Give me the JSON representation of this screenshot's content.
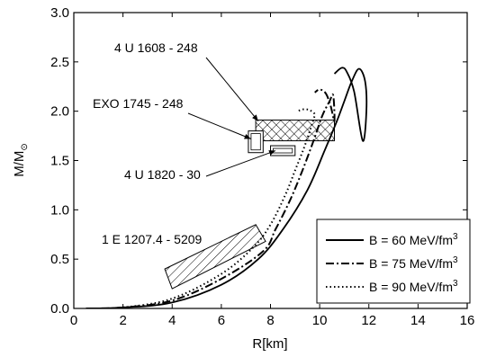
{
  "chart_data": {
    "type": "line",
    "xlabel": "R[km]",
    "ylabel": "M/M",
    "ylabel_sub": "⊙",
    "xlim": [
      0,
      16
    ],
    "ylim": [
      0.0,
      3.0
    ],
    "x_ticks": [
      0,
      2,
      4,
      6,
      8,
      10,
      12,
      14,
      16
    ],
    "y_ticks": [
      0.0,
      0.5,
      1.0,
      1.5,
      2.0,
      2.5,
      3.0
    ],
    "x_tick_labels": [
      "0",
      "2",
      "4",
      "6",
      "8",
      "10",
      "12",
      "14",
      "16"
    ],
    "y_tick_labels": [
      "0.0",
      "0.5",
      "1.0",
      "1.5",
      "2.0",
      "2.5",
      "3.0"
    ],
    "legend_position": "bottom-right",
    "series": [
      {
        "name": "B = 60 MeV/fm",
        "name_sup": "3",
        "style": "solid",
        "x": [
          0.5,
          2.0,
          4.0,
          6.0,
          7.5,
          8.5,
          9.5,
          10.2,
          10.7,
          11.0,
          11.3,
          11.6,
          11.85,
          11.9,
          11.75,
          11.4,
          11.1,
          10.9,
          10.6
        ],
        "y": [
          0.0,
          0.01,
          0.06,
          0.24,
          0.5,
          0.8,
          1.2,
          1.6,
          1.9,
          2.1,
          2.3,
          2.43,
          2.3,
          2.0,
          1.7,
          2.2,
          2.4,
          2.44,
          2.38
        ]
      },
      {
        "name": "B = 75 MeV/fm",
        "name_sup": "3",
        "style": "dash-dot",
        "x": [
          0.5,
          2.0,
          4.0,
          6.0,
          7.7,
          8.2,
          8.8,
          9.3,
          9.75,
          10.1,
          10.4,
          10.55,
          10.6,
          10.45,
          10.25,
          10.0,
          9.8
        ],
        "y": [
          0.0,
          0.01,
          0.08,
          0.3,
          0.58,
          0.8,
          1.1,
          1.4,
          1.7,
          1.95,
          2.1,
          2.16,
          1.9,
          2.05,
          2.18,
          2.22,
          2.19
        ]
      },
      {
        "name": "B = 90 MeV/fm",
        "name_sup": "3",
        "style": "dotted",
        "x": [
          0.5,
          2.0,
          4.0,
          6.0,
          7.3,
          8.0,
          8.6,
          9.0,
          9.35,
          9.6,
          9.75,
          9.8,
          9.6,
          9.35,
          9.1
        ],
        "y": [
          0.0,
          0.01,
          0.1,
          0.35,
          0.62,
          0.85,
          1.15,
          1.4,
          1.62,
          1.8,
          1.92,
          1.97,
          2.01,
          2.02,
          2.0
        ]
      }
    ],
    "regions": [
      {
        "name": "4 U 1608 - 248",
        "pattern": "crosshatch",
        "x": [
          7.4,
          10.6
        ],
        "y": [
          1.7,
          1.91
        ]
      },
      {
        "name": "EXO 1745 - 248",
        "pattern": "outline",
        "x": [
          7.1,
          7.7
        ],
        "y": [
          1.58,
          1.8
        ]
      },
      {
        "name": "4 U 1820 - 30",
        "pattern": "outline",
        "x": [
          8.0,
          9.0
        ],
        "y": [
          1.55,
          1.65
        ]
      },
      {
        "name": "1 E 1207.4 - 5209",
        "pattern": "diagonal-hatch",
        "polygon": [
          [
            3.7,
            0.4
          ],
          [
            7.4,
            0.85
          ],
          [
            7.8,
            0.68
          ],
          [
            4.0,
            0.2
          ]
        ]
      }
    ],
    "annotations": [
      {
        "text": "4 U 1608 - 248",
        "pointer_to": [
          7.5,
          1.9
        ]
      },
      {
        "text": "EXO 1745 - 248",
        "pointer_to": [
          7.2,
          1.72
        ]
      },
      {
        "text": "4 U 1820 - 30",
        "pointer_to": [
          8.2,
          1.6
        ]
      },
      {
        "text": "1 E 1207.4 - 5209",
        "pointer_to": null
      }
    ]
  }
}
